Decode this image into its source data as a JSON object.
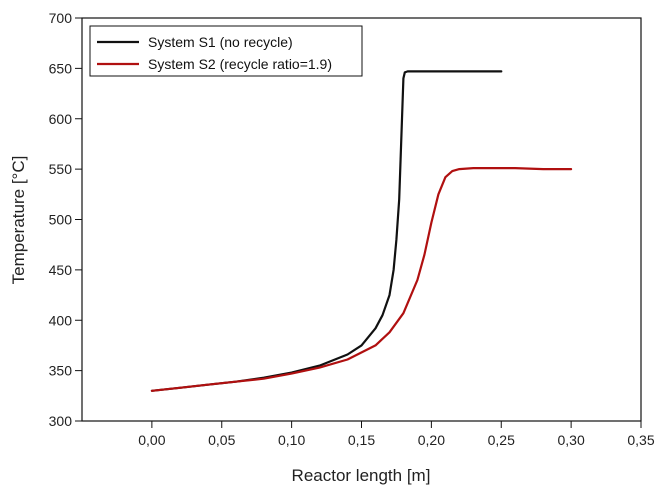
{
  "chart_data": {
    "type": "line",
    "xlabel": "Reactor length [m]",
    "ylabel": "Temperature [°C]",
    "xlim": [
      -0.05,
      0.35
    ],
    "ylim": [
      300,
      700
    ],
    "x_ticks": [
      "0,00",
      "0,05",
      "0,10",
      "0,15",
      "0,20",
      "0,25",
      "0,30",
      "0,35"
    ],
    "x_tick_values": [
      0.0,
      0.05,
      0.1,
      0.15,
      0.2,
      0.25,
      0.3,
      0.35
    ],
    "y_ticks": [
      "300",
      "350",
      "400",
      "450",
      "500",
      "550",
      "600",
      "650",
      "700"
    ],
    "y_tick_values": [
      300,
      350,
      400,
      450,
      500,
      550,
      600,
      650,
      700
    ],
    "grid": false,
    "legend_position": "top-left",
    "series": [
      {
        "name": "System S1 (no recycle)",
        "color": "#111111",
        "x": [
          0.0,
          0.02,
          0.04,
          0.06,
          0.08,
          0.1,
          0.12,
          0.14,
          0.15,
          0.16,
          0.165,
          0.17,
          0.173,
          0.175,
          0.177,
          0.178,
          0.179,
          0.18,
          0.181,
          0.183,
          0.19,
          0.2,
          0.22,
          0.25
        ],
        "y": [
          330,
          333,
          336,
          339,
          343,
          348,
          355,
          366,
          375,
          392,
          405,
          425,
          450,
          480,
          520,
          560,
          600,
          640,
          646,
          647,
          647,
          647,
          647,
          647
        ]
      },
      {
        "name": "System S2 (recycle ratio=1.9)",
        "color": "#b01010",
        "x": [
          0.0,
          0.02,
          0.04,
          0.06,
          0.08,
          0.1,
          0.12,
          0.14,
          0.16,
          0.17,
          0.18,
          0.19,
          0.195,
          0.2,
          0.205,
          0.21,
          0.215,
          0.22,
          0.23,
          0.24,
          0.26,
          0.28,
          0.3
        ],
        "y": [
          330,
          333,
          336,
          339,
          342,
          347,
          353,
          361,
          375,
          388,
          407,
          440,
          465,
          497,
          525,
          542,
          548,
          550,
          551,
          551,
          551,
          550,
          550
        ]
      }
    ]
  }
}
